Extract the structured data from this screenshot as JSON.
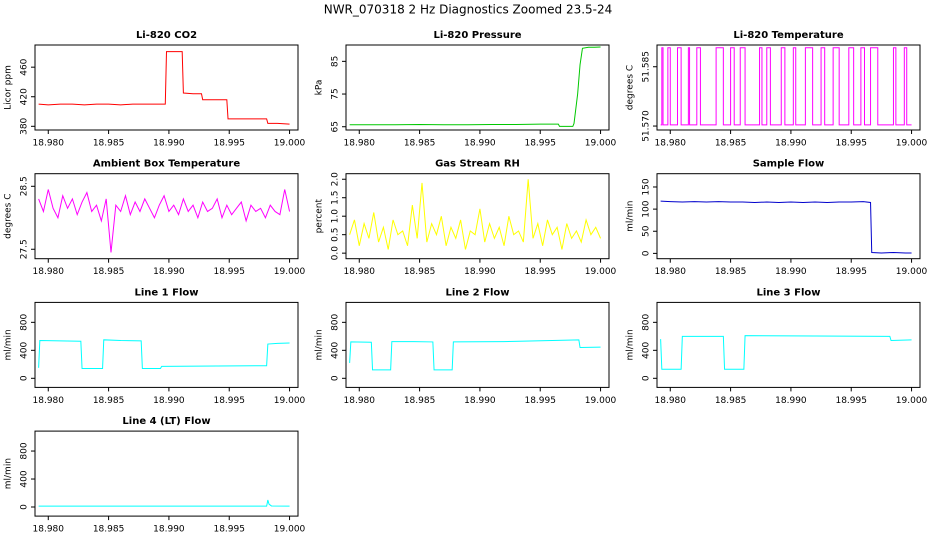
{
  "title": "NWR_070318  2 Hz Diagnostics Zoomed 23.5-24",
  "chart_data": [
    {
      "type": "line",
      "title": "Li-820 CO2",
      "ylabel": "Licor ppm",
      "color": "#ff0000",
      "x": [
        18.9792,
        18.98,
        18.981,
        18.982,
        18.983,
        18.984,
        18.985,
        18.986,
        18.987,
        18.988,
        18.989,
        18.9897,
        18.9898,
        18.9905,
        18.9911,
        18.9912,
        18.992,
        18.9927,
        18.9928,
        18.994,
        18.9948,
        18.9949,
        18.996,
        18.997,
        18.9981,
        18.9982,
        18.999,
        19.0
      ],
      "values": [
        410,
        409,
        410,
        410,
        409,
        410,
        410,
        409,
        410,
        410,
        410,
        410,
        481,
        481,
        481,
        425,
        424,
        424,
        416,
        416,
        416,
        390,
        390,
        390,
        390,
        384,
        384,
        383
      ],
      "xlim": [
        18.9789,
        19.0007
      ],
      "ylim": [
        375,
        490
      ],
      "yticks": [
        380,
        420,
        460
      ],
      "xticks": [
        {
          "value": 18.98,
          "label": "18.980"
        },
        {
          "value": 18.985,
          "label": "18.985"
        },
        {
          "value": 18.99,
          "label": "18.990"
        },
        {
          "value": 18.995,
          "label": "18.995"
        },
        {
          "value": 19,
          "label": "19.000"
        }
      ]
    },
    {
      "type": "line",
      "title": "Li-820 Pressure",
      "ylabel": "kPa",
      "color": "#00c800",
      "x": [
        18.9792,
        18.981,
        18.983,
        18.985,
        18.987,
        18.989,
        18.991,
        18.993,
        18.995,
        18.9965,
        18.9966,
        18.9977,
        18.9978,
        18.9981,
        18.9983,
        18.9985,
        18.999,
        18.9995,
        19.0
      ],
      "values": [
        65.6,
        65.6,
        65.6,
        65.7,
        65.6,
        65.6,
        65.7,
        65.7,
        65.8,
        65.8,
        65.1,
        65.1,
        66,
        75,
        84,
        89,
        89.3,
        89.3,
        89.4
      ],
      "xlim": [
        18.9789,
        19.0007
      ],
      "ylim": [
        64,
        90
      ],
      "yticks": [
        65,
        75,
        85
      ],
      "xticks": [
        {
          "value": 18.98,
          "label": "18.980"
        },
        {
          "value": 18.985,
          "label": "18.985"
        },
        {
          "value": 18.99,
          "label": "18.990"
        },
        {
          "value": 18.995,
          "label": "18.995"
        },
        {
          "value": 19,
          "label": "19.000"
        }
      ]
    },
    {
      "type": "line",
      "title": "Li-820 Temperature",
      "ylabel": "degrees C",
      "color": "#ff00ff",
      "x": [
        18.9792,
        18.9793,
        18.9793,
        18.9794,
        18.9794,
        18.9798,
        18.9798,
        18.98,
        18.98,
        18.9806,
        18.9806,
        18.9809,
        18.9809,
        18.9815,
        18.9815,
        18.9816,
        18.9816,
        18.9822,
        18.9822,
        18.9825,
        18.9825,
        18.9838,
        18.9838,
        18.9844,
        18.9844,
        18.985,
        18.985,
        18.9853,
        18.9853,
        18.9858,
        18.9858,
        18.9862,
        18.9862,
        18.9874,
        18.9874,
        18.9876,
        18.9876,
        18.988,
        18.988,
        18.9883,
        18.9883,
        18.9892,
        18.9892,
        18.9895,
        18.9895,
        18.9902,
        18.9902,
        18.9904,
        18.9904,
        18.9912,
        18.9912,
        18.9918,
        18.9918,
        18.9925,
        18.9925,
        18.9928,
        18.9928,
        18.9935,
        18.9935,
        18.994,
        18.994,
        18.9948,
        18.9948,
        18.9952,
        18.9952,
        18.9958,
        18.9958,
        18.9961,
        18.9961,
        18.9966,
        18.9966,
        18.9972,
        18.9972,
        18.9985,
        18.9985,
        18.9987,
        18.9987,
        18.9994,
        18.9994,
        18.9996,
        18.9996,
        19.0
      ],
      "values": [
        51.5703,
        51.5703,
        51.5898,
        51.5898,
        51.5703,
        51.5703,
        51.5898,
        51.5898,
        51.5703,
        51.5703,
        51.5898,
        51.5898,
        51.5703,
        51.5703,
        51.5898,
        51.5898,
        51.5703,
        51.5703,
        51.5898,
        51.5898,
        51.5703,
        51.5703,
        51.5898,
        51.5898,
        51.5703,
        51.5703,
        51.5898,
        51.5898,
        51.5703,
        51.5703,
        51.5898,
        51.5898,
        51.5703,
        51.5703,
        51.5898,
        51.5898,
        51.5703,
        51.5703,
        51.5898,
        51.5898,
        51.5703,
        51.5703,
        51.5898,
        51.5898,
        51.5703,
        51.5703,
        51.5898,
        51.5898,
        51.5703,
        51.5703,
        51.5898,
        51.5898,
        51.5703,
        51.5703,
        51.5898,
        51.5898,
        51.5703,
        51.5703,
        51.5898,
        51.5898,
        51.5703,
        51.5703,
        51.5898,
        51.5898,
        51.5703,
        51.5703,
        51.5898,
        51.5898,
        51.5703,
        51.5703,
        51.5898,
        51.5898,
        51.5703,
        51.5703,
        51.5898,
        51.5898,
        51.5703,
        51.5703,
        51.5898,
        51.5898,
        51.5703,
        51.5703
      ],
      "xlim": [
        18.9789,
        19.0007
      ],
      "ylim": [
        51.569,
        51.5905
      ],
      "yticks": [
        {
          "value": 51.57,
          "label": "51.570"
        },
        {
          "value": 51.585,
          "label": "51.585"
        }
      ],
      "xticks": [
        {
          "value": 18.98,
          "label": "18.980"
        },
        {
          "value": 18.985,
          "label": "18.985"
        },
        {
          "value": 18.99,
          "label": "18.990"
        },
        {
          "value": 18.995,
          "label": "18.995"
        },
        {
          "value": 19,
          "label": "19.000"
        }
      ]
    },
    {
      "type": "line",
      "title": "Ambient Box Temperature",
      "ylabel": "degrees C",
      "color": "#ff00ff",
      "x": [
        18.9792,
        18.9796,
        18.98,
        18.9804,
        18.9808,
        18.9812,
        18.9816,
        18.982,
        18.9824,
        18.9828,
        18.9832,
        18.9836,
        18.984,
        18.9844,
        18.9848,
        18.9852,
        18.9856,
        18.986,
        18.9864,
        18.9868,
        18.9872,
        18.9876,
        18.988,
        18.9884,
        18.9888,
        18.9892,
        18.9896,
        18.99,
        18.9904,
        18.9908,
        18.9912,
        18.9916,
        18.992,
        18.9924,
        18.9928,
        18.9932,
        18.9936,
        18.994,
        18.9944,
        18.9948,
        18.9952,
        18.9956,
        18.996,
        18.9964,
        18.9968,
        18.9972,
        18.9976,
        18.998,
        18.9984,
        18.9988,
        18.9992,
        18.9996,
        19.0
      ],
      "values": [
        28.3,
        28.1,
        28.45,
        28.15,
        28.0,
        28.35,
        28.15,
        28.3,
        28.05,
        28.25,
        28.4,
        28.1,
        28.2,
        27.95,
        28.3,
        27.45,
        28.2,
        28.1,
        28.35,
        28.05,
        28.25,
        28.1,
        28.3,
        28.15,
        28.0,
        28.2,
        28.35,
        28.1,
        28.2,
        28.05,
        28.3,
        28.1,
        28.2,
        28.0,
        28.25,
        28.1,
        28.15,
        28.3,
        28.0,
        28.2,
        28.05,
        28.15,
        28.25,
        27.95,
        28.2,
        28.1,
        28.15,
        28.0,
        28.2,
        28.1,
        28.05,
        28.45,
        28.1
      ],
      "xlim": [
        18.9789,
        19.0007
      ],
      "ylim": [
        27.35,
        28.7
      ],
      "yticks": [
        27.5,
        28.5
      ],
      "xticks": [
        {
          "value": 18.98,
          "label": "18.980"
        },
        {
          "value": 18.985,
          "label": "18.985"
        },
        {
          "value": 18.99,
          "label": "18.990"
        },
        {
          "value": 18.995,
          "label": "18.995"
        },
        {
          "value": 19,
          "label": "19.000"
        }
      ]
    },
    {
      "type": "line",
      "title": "Gas Stream RH",
      "ylabel": "percent",
      "color": "#ffff00",
      "x": [
        18.9792,
        18.9796,
        18.98,
        18.9804,
        18.9808,
        18.9812,
        18.9816,
        18.982,
        18.9824,
        18.9828,
        18.9832,
        18.9836,
        18.984,
        18.9844,
        18.9848,
        18.9852,
        18.9856,
        18.986,
        18.9864,
        18.9868,
        18.9872,
        18.9876,
        18.988,
        18.9884,
        18.9888,
        18.9892,
        18.9896,
        18.99,
        18.9904,
        18.9908,
        18.9912,
        18.9916,
        18.992,
        18.9924,
        18.9928,
        18.9932,
        18.9936,
        18.994,
        18.9944,
        18.9948,
        18.9952,
        18.9956,
        18.996,
        18.9964,
        18.9968,
        18.9972,
        18.9976,
        18.998,
        18.9984,
        18.9988,
        18.9992,
        18.9996,
        19.0
      ],
      "values": [
        0.5,
        0.9,
        0.2,
        0.8,
        0.4,
        1.1,
        0.3,
        0.7,
        0.1,
        0.9,
        0.5,
        0.6,
        0.2,
        1.3,
        0.4,
        1.9,
        0.3,
        0.8,
        0.5,
        1.0,
        0.2,
        0.7,
        0.4,
        0.9,
        0.1,
        0.6,
        0.5,
        1.2,
        0.3,
        0.8,
        0.4,
        0.7,
        0.2,
        1.0,
        0.5,
        0.6,
        0.3,
        2.0,
        0.4,
        0.8,
        0.2,
        0.9,
        0.5,
        0.7,
        0.1,
        0.8,
        0.4,
        0.6,
        0.3,
        0.9,
        0.5,
        0.7,
        0.4
      ],
      "xlim": [
        18.9789,
        19.0007
      ],
      "ylim": [
        -0.15,
        2.15
      ],
      "yticks": [
        {
          "value": 0,
          "label": "0.0"
        },
        {
          "value": 0.5,
          "label": "0.5"
        },
        {
          "value": 1,
          "label": "1.0"
        },
        {
          "value": 1.5,
          "label": "1.5"
        },
        {
          "value": 2,
          "label": "2.0"
        }
      ],
      "xticks": [
        {
          "value": 18.98,
          "label": "18.980"
        },
        {
          "value": 18.985,
          "label": "18.985"
        },
        {
          "value": 18.99,
          "label": "18.990"
        },
        {
          "value": 18.995,
          "label": "18.995"
        },
        {
          "value": 19,
          "label": "19.000"
        }
      ]
    },
    {
      "type": "line",
      "title": "Sample Flow",
      "ylabel": "ml/min",
      "color": "#0000cc",
      "x": [
        18.9792,
        18.98,
        18.981,
        18.982,
        18.983,
        18.984,
        18.985,
        18.986,
        18.987,
        18.988,
        18.989,
        18.99,
        18.991,
        18.992,
        18.993,
        18.994,
        18.995,
        18.996,
        18.9966,
        18.9967,
        18.9975,
        18.9985,
        18.9995,
        19.0
      ],
      "values": [
        118,
        117,
        116,
        117,
        116,
        117,
        116,
        116,
        115,
        116,
        115,
        116,
        115,
        116,
        115,
        116,
        116,
        117,
        115,
        2,
        1,
        2,
        1,
        1
      ],
      "xlim": [
        18.9789,
        19.0007
      ],
      "ylim": [
        -12,
        180
      ],
      "yticks": [
        0,
        50,
        100,
        150
      ],
      "xticks": [
        {
          "value": 18.98,
          "label": "18.980"
        },
        {
          "value": 18.985,
          "label": "18.985"
        },
        {
          "value": 18.99,
          "label": "18.990"
        },
        {
          "value": 18.995,
          "label": "18.995"
        },
        {
          "value": 19,
          "label": "19.000"
        }
      ]
    },
    {
      "type": "line",
      "title": "Line 1 Flow",
      "ylabel": "ml/min",
      "color": "#00ffff",
      "x": [
        18.9792,
        18.9793,
        18.981,
        18.9827,
        18.9828,
        18.9845,
        18.9846,
        18.986,
        18.9877,
        18.9878,
        18.9893,
        18.9894,
        18.994,
        18.9981,
        18.9982,
        18.999,
        19.0
      ],
      "values": [
        150,
        540,
        535,
        530,
        140,
        140,
        550,
        540,
        535,
        140,
        140,
        170,
        175,
        180,
        490,
        500,
        505
      ],
      "xlim": [
        18.9789,
        19.0007
      ],
      "ylim": [
        -130,
        1085
      ],
      "yticks": [
        0,
        400,
        800
      ],
      "xticks": [
        {
          "value": 18.98,
          "label": "18.980"
        },
        {
          "value": 18.985,
          "label": "18.985"
        },
        {
          "value": 18.99,
          "label": "18.990"
        },
        {
          "value": 18.995,
          "label": "18.995"
        },
        {
          "value": 19,
          "label": "19.000"
        }
      ]
    },
    {
      "type": "line",
      "title": "Line 2 Flow",
      "ylabel": "ml/min",
      "color": "#00ffff",
      "x": [
        18.9792,
        18.9793,
        18.981,
        18.9811,
        18.9826,
        18.9827,
        18.9845,
        18.9861,
        18.9862,
        18.9877,
        18.9878,
        18.992,
        18.996,
        18.9982,
        18.9983,
        19.0
      ],
      "values": [
        220,
        520,
        515,
        120,
        120,
        525,
        525,
        520,
        120,
        120,
        520,
        525,
        540,
        550,
        440,
        445
      ],
      "xlim": [
        18.9789,
        19.0007
      ],
      "ylim": [
        -130,
        1085
      ],
      "yticks": [
        0,
        400,
        800
      ],
      "xticks": [
        {
          "value": 18.98,
          "label": "18.980"
        },
        {
          "value": 18.985,
          "label": "18.985"
        },
        {
          "value": 18.99,
          "label": "18.990"
        },
        {
          "value": 18.995,
          "label": "18.995"
        },
        {
          "value": 19,
          "label": "19.000"
        }
      ]
    },
    {
      "type": "line",
      "title": "Line 3 Flow",
      "ylabel": "ml/min",
      "color": "#00ffff",
      "x": [
        18.9792,
        18.9793,
        18.9809,
        18.981,
        18.9844,
        18.9845,
        18.9861,
        18.9862,
        18.992,
        18.9982,
        18.9983,
        19.0
      ],
      "values": [
        560,
        130,
        130,
        600,
        600,
        130,
        130,
        610,
        605,
        600,
        540,
        550
      ],
      "xlim": [
        18.9789,
        19.0007
      ],
      "ylim": [
        -130,
        1085
      ],
      "yticks": [
        0,
        400,
        800
      ],
      "xticks": [
        {
          "value": 18.98,
          "label": "18.980"
        },
        {
          "value": 18.985,
          "label": "18.985"
        },
        {
          "value": 18.99,
          "label": "18.990"
        },
        {
          "value": 18.995,
          "label": "18.995"
        },
        {
          "value": 19,
          "label": "19.000"
        }
      ]
    },
    {
      "type": "line",
      "title": "Line 4 (LT) Flow",
      "ylabel": "ml/min",
      "color": "#00ffff",
      "x": [
        18.9792,
        18.985,
        18.99,
        18.9981,
        18.9982,
        18.9983,
        18.9985,
        19.0
      ],
      "values": [
        12,
        12,
        12,
        12,
        100,
        40,
        15,
        12
      ],
      "xlim": [
        18.9789,
        19.0007
      ],
      "ylim": [
        -130,
        1085
      ],
      "yticks": [
        0,
        400,
        800
      ],
      "xticks": [
        {
          "value": 18.98,
          "label": "18.980"
        },
        {
          "value": 18.985,
          "label": "18.985"
        },
        {
          "value": 18.99,
          "label": "18.990"
        },
        {
          "value": 18.995,
          "label": "18.995"
        },
        {
          "value": 19,
          "label": "19.000"
        }
      ]
    }
  ]
}
